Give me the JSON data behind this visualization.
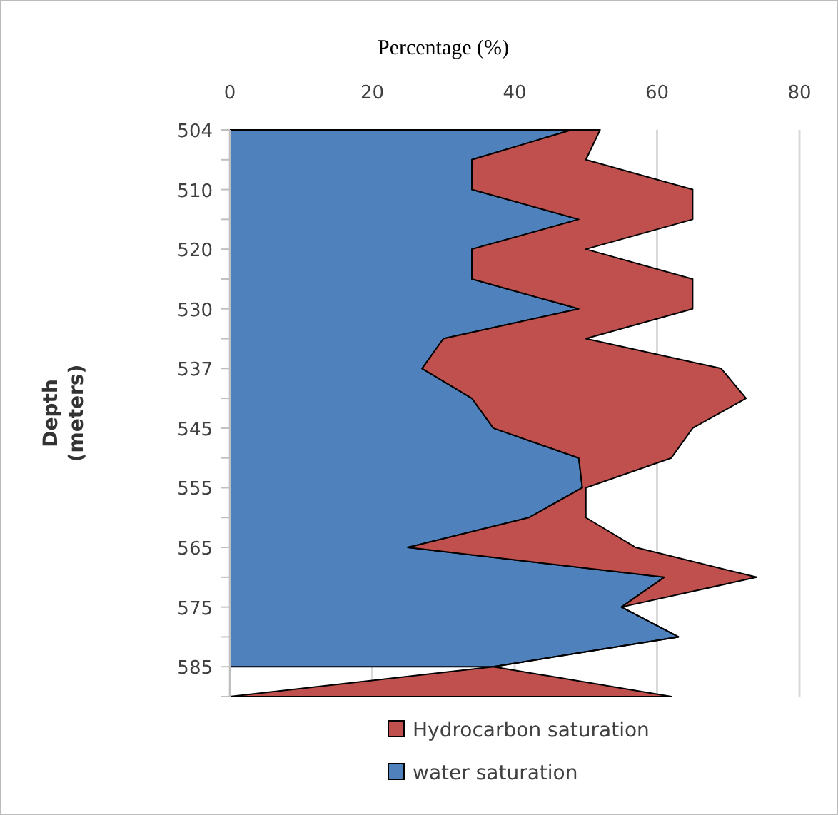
{
  "chart_data": {
    "type": "area",
    "orientation": "horizontal",
    "stacked": true,
    "xlabel": "Percentage (%)",
    "ylabel": "Depth (meters)",
    "categories": [
      "504",
      null,
      "510",
      null,
      "520",
      null,
      "530",
      null,
      "537",
      null,
      "545",
      null,
      "555",
      null,
      "565",
      null,
      "575",
      null,
      "585",
      null
    ],
    "series": [
      {
        "name": "water saturation",
        "color": "#4f81bd",
        "values": [
          48,
          34,
          34,
          49,
          34,
          34,
          49,
          30,
          27,
          34,
          37,
          49,
          49.5,
          42,
          25,
          61,
          55,
          63,
          37,
          null
        ]
      },
      {
        "name": "Hydrocarbon saturation",
        "color": "#c0504d",
        "values": [
          4,
          16,
          31,
          16,
          16,
          31,
          16,
          20,
          42,
          38.5,
          28,
          13,
          0.5,
          8,
          32,
          13,
          0,
          0,
          0,
          62
        ]
      }
    ],
    "xlim": [
      0,
      80
    ],
    "xticks": [
      0,
      20,
      40,
      60,
      80
    ],
    "grid": "x",
    "legend": "bottom right"
  }
}
